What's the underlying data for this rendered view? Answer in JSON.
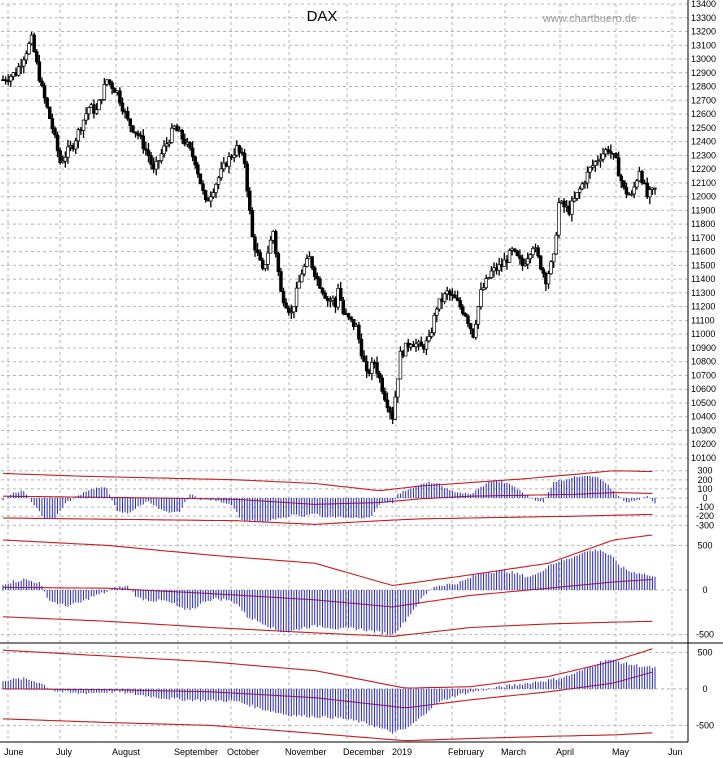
{
  "chart_data": {
    "type": "ohlc",
    "title": "DAX",
    "watermark": "www.chartbuero.de",
    "colors": {
      "price": "#000000",
      "histogram": "#2828c8",
      "bands": "#c81e1e",
      "grid": "#b4b4b4"
    },
    "x_months": [
      "June",
      "July",
      "August",
      "September",
      "October",
      "November",
      "December",
      "2019",
      "February",
      "March",
      "April",
      "May",
      "Jun"
    ],
    "price_panel": {
      "y_range": [
        10100,
        13400
      ],
      "y_ticks": [
        "13400",
        "13300",
        "13200",
        "13100",
        "13000",
        "12900",
        "12800",
        "12700",
        "12600",
        "12500",
        "12400",
        "12300",
        "12200",
        "12100",
        "12000",
        "11900",
        "11800",
        "11700",
        "11600",
        "11500",
        "11400",
        "11300",
        "11200",
        "11100",
        "11000",
        "10900",
        "10800",
        "10700",
        "10600",
        "10500",
        "10400",
        "10300",
        "10200",
        "10100"
      ],
      "close_path": [
        [
          0,
          12850
        ],
        [
          5,
          12900
        ],
        [
          11,
          13140
        ],
        [
          15,
          12780
        ],
        [
          19,
          12500
        ],
        [
          22,
          12250
        ],
        [
          27,
          12380
        ],
        [
          33,
          12650
        ],
        [
          36,
          12620
        ],
        [
          40,
          12850
        ],
        [
          44,
          12760
        ],
        [
          48,
          12550
        ],
        [
          52,
          12450
        ],
        [
          56,
          12300
        ],
        [
          58,
          12180
        ],
        [
          62,
          12350
        ],
        [
          66,
          12500
        ],
        [
          70,
          12400
        ],
        [
          74,
          12260
        ],
        [
          78,
          11950
        ],
        [
          82,
          12100
        ],
        [
          86,
          12250
        ],
        [
          90,
          12350
        ],
        [
          93,
          12250
        ],
        [
          96,
          11700
        ],
        [
          100,
          11450
        ],
        [
          104,
          11750
        ],
        [
          107,
          11300
        ],
        [
          111,
          11150
        ],
        [
          115,
          11450
        ],
        [
          118,
          11550
        ],
        [
          121,
          11400
        ],
        [
          125,
          11250
        ],
        [
          127,
          11250
        ],
        [
          128,
          11200
        ],
        [
          129,
          11350
        ],
        [
          131,
          11150
        ],
        [
          136,
          11050
        ],
        [
          140,
          10700
        ],
        [
          143,
          10800
        ],
        [
          147,
          10550
        ],
        [
          150,
          10400
        ],
        [
          153,
          10850
        ],
        [
          157,
          10950
        ],
        [
          161,
          10900
        ],
        [
          164,
          10950
        ],
        [
          167,
          11200
        ],
        [
          171,
          11300
        ],
        [
          174,
          11250
        ],
        [
          178,
          11150
        ],
        [
          181,
          11000
        ],
        [
          184,
          11300
        ],
        [
          188,
          11450
        ],
        [
          192,
          11500
        ],
        [
          196,
          11600
        ],
        [
          200,
          11500
        ],
        [
          204,
          11650
        ],
        [
          207,
          11500
        ],
        [
          209,
          11400
        ],
        [
          212,
          11550
        ],
        [
          214,
          11950
        ],
        [
          218,
          11900
        ],
        [
          222,
          12050
        ],
        [
          226,
          12200
        ],
        [
          230,
          12300
        ],
        [
          233,
          12350
        ],
        [
          236,
          12250
        ],
        [
          239,
          12050
        ],
        [
          242,
          12000
        ],
        [
          245,
          12200
        ],
        [
          248,
          12000
        ],
        [
          251,
          12050
        ]
      ]
    },
    "indicator_1": {
      "y_ticks": [
        "300",
        "200",
        "100",
        "0",
        "-100",
        "-200",
        "-300"
      ],
      "y_range": [
        -330,
        330
      ],
      "histogram": [
        [
          0,
          -30
        ],
        [
          4,
          60
        ],
        [
          8,
          80
        ],
        [
          12,
          -80
        ],
        [
          16,
          -230
        ],
        [
          20,
          -220
        ],
        [
          24,
          -60
        ],
        [
          28,
          10
        ],
        [
          32,
          80
        ],
        [
          36,
          110
        ],
        [
          40,
          110
        ],
        [
          44,
          -150
        ],
        [
          48,
          -170
        ],
        [
          52,
          -100
        ],
        [
          56,
          -30
        ],
        [
          60,
          -120
        ],
        [
          64,
          -170
        ],
        [
          68,
          -150
        ],
        [
          72,
          40
        ],
        [
          76,
          -10
        ],
        [
          80,
          -20
        ],
        [
          84,
          -40
        ],
        [
          88,
          -70
        ],
        [
          92,
          -250
        ],
        [
          96,
          -250
        ],
        [
          100,
          -270
        ],
        [
          104,
          -240
        ],
        [
          108,
          -220
        ],
        [
          112,
          -180
        ],
        [
          116,
          -200
        ],
        [
          120,
          -170
        ],
        [
          124,
          -220
        ],
        [
          128,
          -210
        ],
        [
          131,
          -210
        ],
        [
          134,
          -220
        ],
        [
          138,
          -220
        ],
        [
          142,
          -200
        ],
        [
          146,
          -40
        ],
        [
          150,
          -50
        ],
        [
          152,
          40
        ],
        [
          156,
          100
        ],
        [
          160,
          140
        ],
        [
          164,
          170
        ],
        [
          168,
          150
        ],
        [
          172,
          80
        ],
        [
          176,
          60
        ],
        [
          180,
          40
        ],
        [
          184,
          120
        ],
        [
          188,
          190
        ],
        [
          192,
          180
        ],
        [
          196,
          140
        ],
        [
          200,
          60
        ],
        [
          204,
          -10
        ],
        [
          208,
          -50
        ],
        [
          212,
          180
        ],
        [
          216,
          200
        ],
        [
          220,
          230
        ],
        [
          224,
          250
        ],
        [
          228,
          240
        ],
        [
          232,
          170
        ],
        [
          236,
          40
        ],
        [
          240,
          -50
        ],
        [
          244,
          -30
        ],
        [
          248,
          20
        ],
        [
          251,
          -60
        ]
      ],
      "upper_band": [
        [
          0,
          270
        ],
        [
          30,
          240
        ],
        [
          60,
          220
        ],
        [
          90,
          200
        ],
        [
          120,
          160
        ],
        [
          145,
          80
        ],
        [
          160,
          130
        ],
        [
          180,
          170
        ],
        [
          200,
          210
        ],
        [
          220,
          260
        ],
        [
          235,
          300
        ],
        [
          251,
          290
        ]
      ],
      "mid_band": [
        [
          0,
          20
        ],
        [
          30,
          10
        ],
        [
          60,
          0
        ],
        [
          90,
          -15
        ],
        [
          120,
          -70
        ],
        [
          145,
          -50
        ],
        [
          160,
          -10
        ],
        [
          180,
          20
        ],
        [
          200,
          30
        ],
        [
          220,
          40
        ],
        [
          235,
          60
        ],
        [
          251,
          50
        ]
      ],
      "lower_band": [
        [
          0,
          -220
        ],
        [
          30,
          -230
        ],
        [
          60,
          -240
        ],
        [
          90,
          -250
        ],
        [
          120,
          -290
        ],
        [
          145,
          -250
        ],
        [
          160,
          -230
        ],
        [
          180,
          -220
        ],
        [
          200,
          -210
        ],
        [
          220,
          -200
        ],
        [
          235,
          -190
        ],
        [
          251,
          -180
        ]
      ]
    },
    "indicator_2": {
      "y_ticks": [
        "500",
        "0",
        "-500"
      ],
      "y_range": [
        -560,
        560
      ],
      "histogram": [
        [
          0,
          70
        ],
        [
          8,
          120
        ],
        [
          14,
          80
        ],
        [
          18,
          -120
        ],
        [
          24,
          -180
        ],
        [
          30,
          -140
        ],
        [
          34,
          -80
        ],
        [
          40,
          -20
        ],
        [
          44,
          30
        ],
        [
          48,
          40
        ],
        [
          52,
          -90
        ],
        [
          58,
          -120
        ],
        [
          62,
          -120
        ],
        [
          66,
          -160
        ],
        [
          70,
          -230
        ],
        [
          74,
          -200
        ],
        [
          78,
          -120
        ],
        [
          82,
          -100
        ],
        [
          86,
          -110
        ],
        [
          90,
          -150
        ],
        [
          94,
          -300
        ],
        [
          100,
          -370
        ],
        [
          106,
          -460
        ],
        [
          110,
          -470
        ],
        [
          116,
          -420
        ],
        [
          122,
          -400
        ],
        [
          126,
          -420
        ],
        [
          130,
          -440
        ],
        [
          134,
          -430
        ],
        [
          138,
          -440
        ],
        [
          142,
          -460
        ],
        [
          146,
          -480
        ],
        [
          150,
          -500
        ],
        [
          154,
          -380
        ],
        [
          158,
          -220
        ],
        [
          162,
          -70
        ],
        [
          166,
          40
        ],
        [
          170,
          60
        ],
        [
          174,
          70
        ],
        [
          178,
          110
        ],
        [
          182,
          170
        ],
        [
          186,
          200
        ],
        [
          190,
          210
        ],
        [
          194,
          210
        ],
        [
          198,
          180
        ],
        [
          202,
          150
        ],
        [
          206,
          180
        ],
        [
          210,
          280
        ],
        [
          214,
          320
        ],
        [
          218,
          350
        ],
        [
          222,
          410
        ],
        [
          226,
          440
        ],
        [
          230,
          450
        ],
        [
          234,
          380
        ],
        [
          238,
          260
        ],
        [
          242,
          200
        ],
        [
          246,
          190
        ],
        [
          251,
          140
        ]
      ],
      "upper_band": [
        [
          0,
          560
        ],
        [
          40,
          500
        ],
        [
          80,
          390
        ],
        [
          120,
          300
        ],
        [
          150,
          50
        ],
        [
          180,
          170
        ],
        [
          210,
          300
        ],
        [
          235,
          560
        ],
        [
          251,
          620
        ]
      ],
      "mid_band": [
        [
          0,
          30
        ],
        [
          40,
          20
        ],
        [
          80,
          -40
        ],
        [
          120,
          -110
        ],
        [
          150,
          -190
        ],
        [
          180,
          -60
        ],
        [
          210,
          20
        ],
        [
          235,
          90
        ],
        [
          251,
          120
        ]
      ],
      "lower_band": [
        [
          0,
          -300
        ],
        [
          40,
          -350
        ],
        [
          80,
          -420
        ],
        [
          120,
          -480
        ],
        [
          150,
          -520
        ],
        [
          180,
          -420
        ],
        [
          210,
          -380
        ],
        [
          235,
          -360
        ],
        [
          251,
          -350
        ]
      ]
    },
    "indicator_3": {
      "y_ticks": [
        "500",
        "0",
        "-500"
      ],
      "y_range": [
        -700,
        560
      ],
      "histogram": [
        [
          0,
          120
        ],
        [
          8,
          140
        ],
        [
          14,
          90
        ],
        [
          20,
          -30
        ],
        [
          28,
          -60
        ],
        [
          36,
          -50
        ],
        [
          44,
          -40
        ],
        [
          50,
          -70
        ],
        [
          60,
          -120
        ],
        [
          70,
          -150
        ],
        [
          80,
          -160
        ],
        [
          90,
          -170
        ],
        [
          100,
          -280
        ],
        [
          110,
          -360
        ],
        [
          120,
          -380
        ],
        [
          130,
          -400
        ],
        [
          140,
          -470
        ],
        [
          150,
          -600
        ],
        [
          155,
          -550
        ],
        [
          160,
          -420
        ],
        [
          166,
          -220
        ],
        [
          172,
          -120
        ],
        [
          178,
          -60
        ],
        [
          184,
          -20
        ],
        [
          190,
          20
        ],
        [
          196,
          50
        ],
        [
          202,
          80
        ],
        [
          210,
          120
        ],
        [
          216,
          160
        ],
        [
          222,
          240
        ],
        [
          228,
          330
        ],
        [
          232,
          400
        ],
        [
          236,
          380
        ],
        [
          242,
          330
        ],
        [
          246,
          310
        ],
        [
          251,
          290
        ]
      ],
      "upper_band": [
        [
          0,
          530
        ],
        [
          40,
          450
        ],
        [
          80,
          370
        ],
        [
          120,
          250
        ],
        [
          155,
          10
        ],
        [
          180,
          30
        ],
        [
          210,
          170
        ],
        [
          235,
          380
        ],
        [
          251,
          560
        ]
      ],
      "mid_band": [
        [
          0,
          0
        ],
        [
          40,
          -10
        ],
        [
          80,
          -40
        ],
        [
          120,
          -120
        ],
        [
          155,
          -260
        ],
        [
          180,
          -150
        ],
        [
          210,
          -40
        ],
        [
          235,
          80
        ],
        [
          251,
          240
        ]
      ],
      "lower_band": [
        [
          0,
          -410
        ],
        [
          40,
          -460
        ],
        [
          80,
          -500
        ],
        [
          120,
          -610
        ],
        [
          155,
          -710
        ],
        [
          180,
          -680
        ],
        [
          210,
          -650
        ],
        [
          235,
          -630
        ],
        [
          251,
          -600
        ]
      ]
    }
  }
}
